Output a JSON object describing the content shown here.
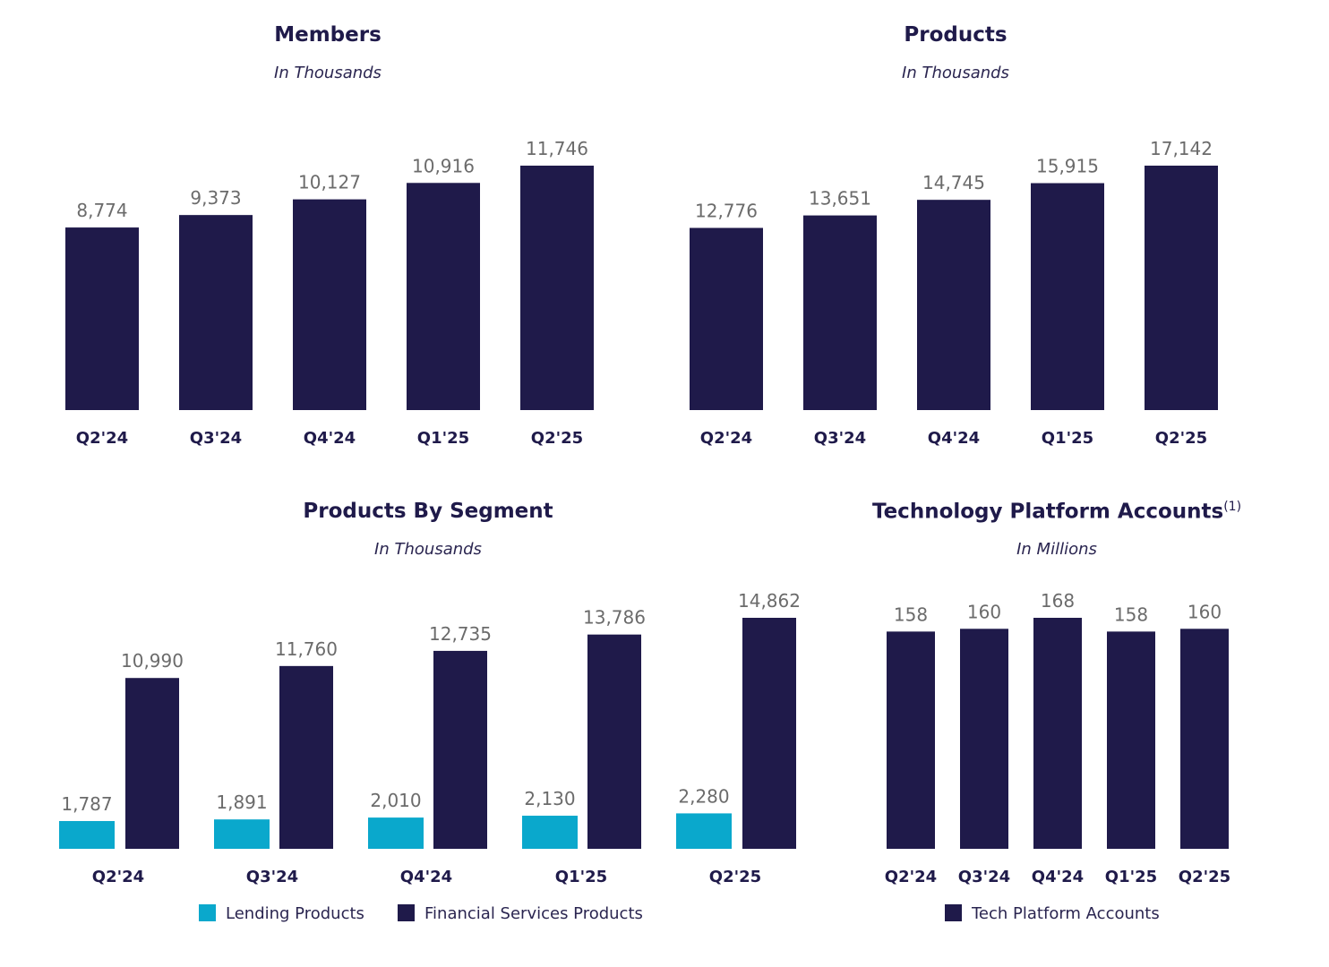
{
  "chart_data": [
    {
      "type": "bar",
      "title": "Members",
      "subtitle": "In Thousands",
      "categories": [
        "Q2'24",
        "Q3'24",
        "Q4'24",
        "Q1'25",
        "Q2'25"
      ],
      "series": [
        {
          "values": [
            8774,
            9373,
            10127,
            10916,
            11746
          ],
          "color": "#1f1a4a"
        }
      ],
      "data_labels": [
        "8,774",
        "9,373",
        "10,127",
        "10,916",
        "11,746"
      ],
      "ylim": [
        0,
        11746
      ],
      "grid": false
    },
    {
      "type": "bar",
      "title": "Products",
      "subtitle": "In Thousands",
      "categories": [
        "Q2'24",
        "Q3'24",
        "Q4'24",
        "Q1'25",
        "Q2'25"
      ],
      "series": [
        {
          "values": [
            12776,
            13651,
            14745,
            15915,
            17142
          ],
          "color": "#1f1a4a"
        }
      ],
      "data_labels": [
        "12,776",
        "13,651",
        "14,745",
        "15,915",
        "17,142"
      ],
      "ylim": [
        0,
        17142
      ],
      "grid": false
    },
    {
      "type": "bar",
      "title": "Products By Segment",
      "subtitle": "In Thousands",
      "categories": [
        "Q2'24",
        "Q3'24",
        "Q4'24",
        "Q1'25",
        "Q2'25"
      ],
      "series": [
        {
          "name": "Lending Products",
          "values": [
            1787,
            1891,
            2010,
            2130,
            2280
          ],
          "color": "#0aa8cc",
          "data_labels": [
            "1,787",
            "1,891",
            "2,010",
            "2,130",
            "2,280"
          ]
        },
        {
          "name": "Financial Services Products",
          "values": [
            10990,
            11760,
            12735,
            13786,
            14862
          ],
          "color": "#1f1a4a",
          "data_labels": [
            "10,990",
            "11,760",
            "12,735",
            "13,786",
            "14,862"
          ]
        }
      ],
      "ylim": [
        0,
        14862
      ],
      "legend": "bottom",
      "grid": false
    },
    {
      "type": "bar",
      "title": "Technology Platform Accounts",
      "title_footnote": "(1)",
      "subtitle": "In Millions",
      "categories": [
        "Q2'24",
        "Q3'24",
        "Q4'24",
        "Q1'25",
        "Q2'25"
      ],
      "series": [
        {
          "name": "Tech Platform Accounts",
          "values": [
            158,
            160,
            168,
            158,
            160
          ],
          "color": "#1f1a4a"
        }
      ],
      "data_labels": [
        "158",
        "160",
        "168",
        "158",
        "160"
      ],
      "ylim": [
        0,
        168
      ],
      "legend": "bottom",
      "grid": false
    }
  ]
}
